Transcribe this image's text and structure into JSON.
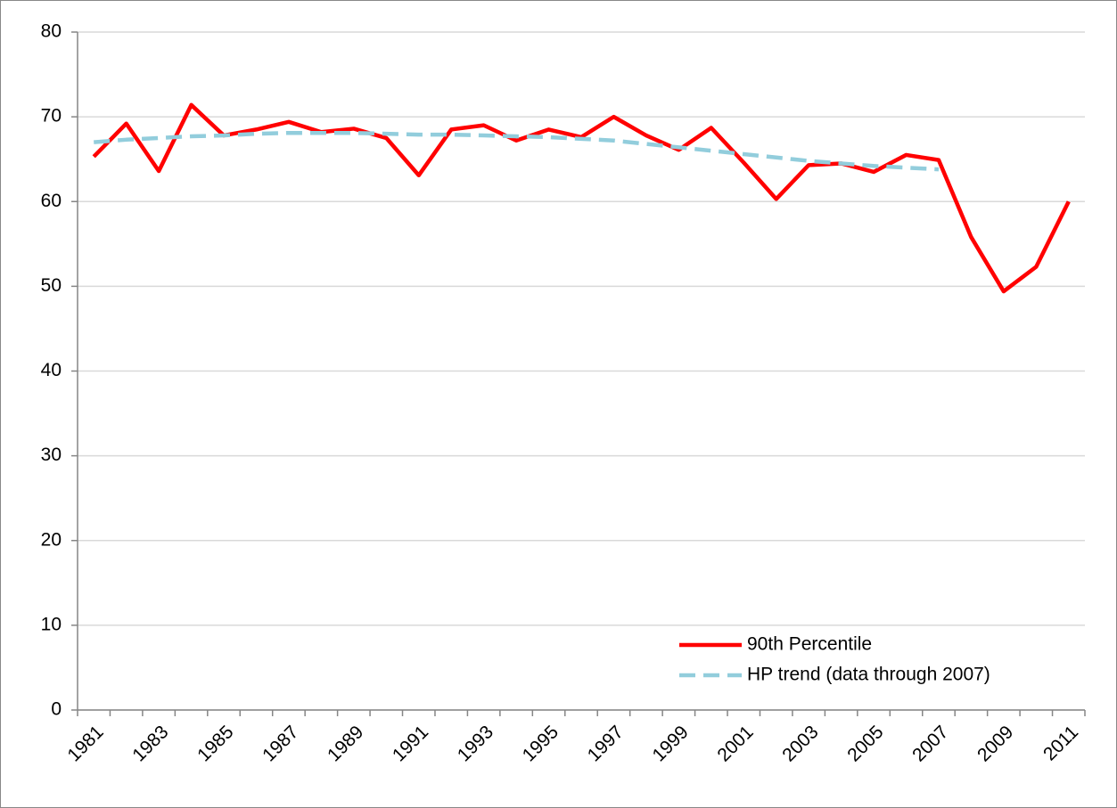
{
  "chart_data": {
    "type": "line",
    "categories": [
      "1981",
      null,
      "1983",
      null,
      "1985",
      null,
      "1987",
      null,
      "1989",
      null,
      "1991",
      null,
      "1993",
      null,
      "1995",
      null,
      "1997",
      null,
      "1999",
      null,
      "2001",
      null,
      "2003",
      null,
      "2005",
      null,
      "2007",
      null,
      "2009",
      null,
      "2011"
    ],
    "series": [
      {
        "name": "90th Percentile",
        "color": "#ff0000",
        "dashed": false,
        "values": [
          65.3,
          69.2,
          63.6,
          71.4,
          67.8,
          68.5,
          69.4,
          68.2,
          68.6,
          67.5,
          63.1,
          68.5,
          69.0,
          67.2,
          68.5,
          67.6,
          70.0,
          67.8,
          66.1,
          68.7,
          64.6,
          60.3,
          64.3,
          64.5,
          63.5,
          65.5,
          64.9,
          55.8,
          49.4,
          52.3,
          60.0
        ]
      },
      {
        "name": "HP trend (data through 2007)",
        "color": "#92cddc",
        "dashed": true,
        "values": [
          67.0,
          67.3,
          67.5,
          67.7,
          67.8,
          68.0,
          68.1,
          68.1,
          68.1,
          68.0,
          67.9,
          67.9,
          67.8,
          67.7,
          67.6,
          67.4,
          67.2,
          66.8,
          66.4,
          66.0,
          65.6,
          65.2,
          64.8,
          64.5,
          64.2,
          64.0,
          63.8,
          null,
          null,
          null,
          null
        ]
      }
    ],
    "ylim": [
      0,
      80
    ],
    "yticks": [
      0,
      10,
      20,
      30,
      40,
      50,
      60,
      70,
      80
    ],
    "grid": true,
    "legend": "lower right"
  }
}
